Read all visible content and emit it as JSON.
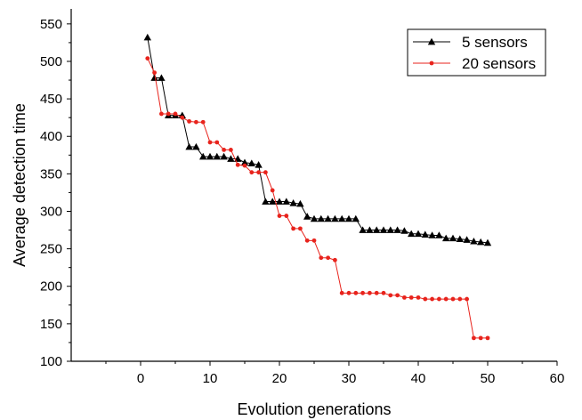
{
  "chart_data": {
    "type": "line",
    "title": "",
    "xlabel": "Evolution generations",
    "ylabel": "Average detection time",
    "xlim": [
      -10,
      60
    ],
    "ylim": [
      100,
      570
    ],
    "xticks": [
      0,
      10,
      20,
      30,
      40,
      50,
      60
    ],
    "yticks": [
      100,
      150,
      200,
      250,
      300,
      350,
      400,
      450,
      500,
      550
    ],
    "legend_position": "top-right",
    "grid": false,
    "x": [
      1,
      2,
      3,
      4,
      5,
      6,
      7,
      8,
      9,
      10,
      11,
      12,
      13,
      14,
      15,
      16,
      17,
      18,
      19,
      20,
      21,
      22,
      23,
      24,
      25,
      26,
      27,
      28,
      29,
      30,
      31,
      32,
      33,
      34,
      35,
      36,
      37,
      38,
      39,
      40,
      41,
      42,
      43,
      44,
      45,
      46,
      47,
      48,
      49,
      50
    ],
    "series": [
      {
        "name": "5 sensors",
        "color": "#000000",
        "marker": "triangle",
        "values": [
          532,
          478,
          478,
          428,
          428,
          428,
          386,
          386,
          373,
          373,
          373,
          373,
          370,
          370,
          365,
          364,
          362,
          313,
          313,
          313,
          313,
          311,
          310,
          293,
          290,
          290,
          290,
          290,
          290,
          290,
          290,
          275,
          275,
          275,
          275,
          275,
          275,
          274,
          270,
          270,
          269,
          268,
          268,
          264,
          264,
          263,
          262,
          260,
          259,
          258
        ]
      },
      {
        "name": "20 sensors",
        "color": "#e8231c",
        "marker": "circle",
        "values": [
          504,
          485,
          430,
          430,
          430,
          425,
          420,
          419,
          419,
          392,
          392,
          382,
          382,
          362,
          361,
          352,
          352,
          352,
          328,
          294,
          294,
          277,
          277,
          261,
          261,
          238,
          238,
          235,
          191,
          191,
          191,
          191,
          191,
          191,
          191,
          188,
          188,
          185,
          185,
          185,
          183,
          183,
          183,
          183,
          183,
          183,
          183,
          131,
          131,
          131
        ]
      }
    ]
  }
}
